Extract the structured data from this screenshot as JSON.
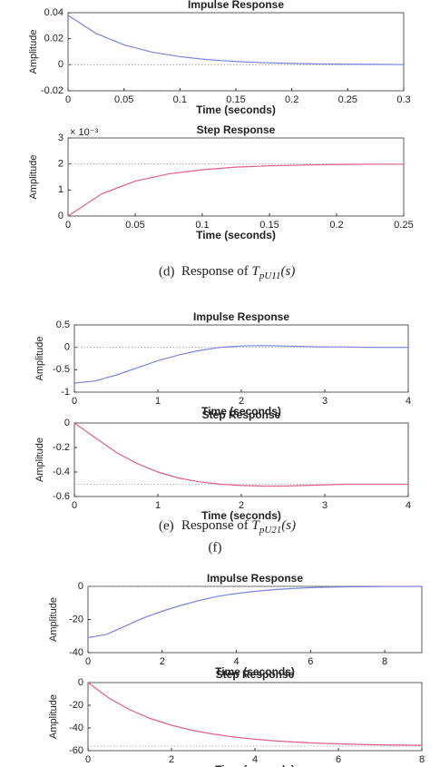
{
  "chart_data": [
    {
      "type": "line",
      "title": "Impulse Response",
      "xlabel": "Time (seconds)",
      "ylabel": "Amplitude",
      "x": [
        0,
        0.025,
        0.05,
        0.075,
        0.1,
        0.125,
        0.15,
        0.175,
        0.2,
        0.225,
        0.25,
        0.275,
        0.3
      ],
      "series": [
        {
          "color": "#7a84e0",
          "values": [
            0.038,
            0.0241,
            0.0153,
            0.0097,
            0.0062,
            0.0039,
            0.0025,
            0.0016,
            0.001,
            0.0006,
            0.0004,
            0.0003,
            0.0002
          ]
        }
      ],
      "hline": 0,
      "xlim": [
        0,
        0.3
      ],
      "ylim": [
        -0.02,
        0.04
      ],
      "xticks": [
        0,
        0.05,
        0.1,
        0.15,
        0.2,
        0.25,
        0.3
      ],
      "yticks": [
        -0.02,
        0,
        0.02,
        0.04
      ],
      "grid": false
    },
    {
      "type": "line",
      "title": "Step Response",
      "xlabel": "Time (seconds)",
      "ylabel": "Amplitude",
      "y_multiplier": "× 10⁻³",
      "x": [
        0,
        0.025,
        0.05,
        0.075,
        0.1,
        0.125,
        0.15,
        0.175,
        0.2,
        0.225,
        0.25
      ],
      "series": [
        {
          "color": "#e0608a",
          "values": [
            0,
            0.85,
            1.34,
            1.62,
            1.78,
            1.88,
            1.93,
            1.96,
            1.98,
            1.99,
            1.99
          ]
        }
      ],
      "hline": 2,
      "xlim": [
        0,
        0.25
      ],
      "ylim": [
        0,
        3
      ],
      "xticks": [
        0,
        0.05,
        0.1,
        0.15,
        0.2,
        0.25
      ],
      "yticks": [
        0,
        1,
        2,
        3
      ],
      "grid": false
    },
    {
      "type": "line",
      "title": "Impulse Response",
      "xlabel": "Time (seconds)",
      "ylabel": "Amplitude",
      "x": [
        0,
        0.25,
        0.5,
        0.75,
        1,
        1.25,
        1.5,
        1.75,
        2,
        2.25,
        2.5,
        2.75,
        3,
        3.25,
        3.5,
        3.75,
        4
      ],
      "series": [
        {
          "color": "#7a84e0",
          "values": [
            -0.8,
            -0.75,
            -0.62,
            -0.46,
            -0.3,
            -0.17,
            -0.07,
            0,
            0.03,
            0.04,
            0.03,
            0.02,
            0.01,
            0.01,
            0,
            0,
            0
          ]
        }
      ],
      "hline": 0,
      "xlim": [
        0,
        4
      ],
      "ylim": [
        -1,
        0.5
      ],
      "xticks": [
        0,
        1,
        2,
        3,
        4
      ],
      "yticks": [
        -1,
        -0.5,
        0,
        0.5
      ],
      "grid": false
    },
    {
      "type": "line",
      "title": "Step Response",
      "xlabel": "Time (seconds)",
      "ylabel": "Amplitude",
      "x": [
        0,
        0.25,
        0.5,
        0.75,
        1,
        1.25,
        1.5,
        1.75,
        2,
        2.25,
        2.5,
        2.75,
        3,
        3.25,
        3.5,
        3.75,
        4
      ],
      "series": [
        {
          "color": "#e0608a",
          "values": [
            0,
            -0.12,
            -0.24,
            -0.33,
            -0.4,
            -0.45,
            -0.48,
            -0.5,
            -0.51,
            -0.515,
            -0.515,
            -0.51,
            -0.505,
            -0.5,
            -0.5,
            -0.5,
            -0.5
          ]
        }
      ],
      "hline": -0.5,
      "xlim": [
        0,
        4
      ],
      "ylim": [
        -0.6,
        0
      ],
      "xticks": [
        0,
        1,
        2,
        3,
        4
      ],
      "yticks": [
        -0.6,
        -0.4,
        -0.2,
        0
      ],
      "grid": false
    },
    {
      "type": "line",
      "title": "Impulse Response",
      "xlabel": "Time (seconds)",
      "ylabel": "Amplitude",
      "x": [
        0,
        0.5,
        1,
        1.5,
        2,
        2.5,
        3,
        3.5,
        4,
        4.5,
        5,
        5.5,
        6,
        6.5,
        7,
        7.5,
        8,
        8.5,
        9
      ],
      "series": [
        {
          "color": "#7a84e0",
          "values": [
            -31,
            -29,
            -24,
            -19,
            -15,
            -11.5,
            -8.5,
            -6,
            -4.3,
            -3,
            -2,
            -1.3,
            -0.8,
            -0.5,
            -0.3,
            -0.2,
            -0.1,
            -0.05,
            0
          ]
        }
      ],
      "hline": 0,
      "xlim": [
        0,
        9
      ],
      "ylim": [
        -40,
        0
      ],
      "xticks": [
        0,
        2,
        4,
        6,
        8
      ],
      "yticks": [
        -40,
        -20,
        0
      ],
      "grid": false
    },
    {
      "type": "line",
      "title": "Step Response",
      "xlabel": "Time (seconds)",
      "ylabel": "Amplitude",
      "x": [
        0,
        0.5,
        1,
        1.5,
        2,
        2.5,
        3,
        3.5,
        4,
        4.5,
        5,
        5.5,
        6,
        6.5,
        7,
        7.5,
        8
      ],
      "series": [
        {
          "color": "#e0608a",
          "values": [
            0,
            -13.6,
            -23.9,
            -31.7,
            -37.6,
            -42.1,
            -45.4,
            -48,
            -49.9,
            -51.4,
            -52.5,
            -53.4,
            -54,
            -54.5,
            -54.9,
            -55.1,
            -55.3
          ]
        }
      ],
      "hline": -56,
      "xlim": [
        0,
        8
      ],
      "ylim": [
        -60,
        0
      ],
      "xticks": [
        0,
        2,
        4,
        6,
        8
      ],
      "yticks": [
        -60,
        -40,
        -20,
        0
      ],
      "grid": false
    }
  ],
  "captions": [
    {
      "label": "(d)",
      "text": "Response of",
      "symbol": "T",
      "sub": "pU11",
      "arg": "(s)"
    },
    {
      "label": "(e)",
      "text": "Response of",
      "symbol": "T",
      "sub": "pU21",
      "arg": "(s)"
    },
    {
      "label": "(f)"
    }
  ]
}
